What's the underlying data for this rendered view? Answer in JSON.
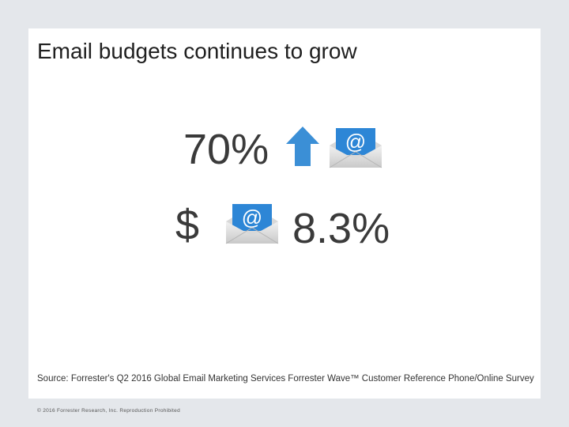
{
  "slide": {
    "title": "Email budgets continues to grow",
    "stat_percent": "70%",
    "stat_currency": "$",
    "stat_growth": "8.3%",
    "source": "Source: Forrester's Q2 2016 Global Email Marketing Services Forrester Wave™ Customer Reference Phone/Online Survey",
    "copyright": "© 2016 Forrester Research, Inc. Reproduction Prohibited"
  },
  "icons": {
    "arrow": "up-arrow-icon",
    "envelope": "email-envelope-icon",
    "at_symbol": "@"
  },
  "colors": {
    "arrow": "#3b8fd6",
    "envelope_letter": "#2d86d6"
  }
}
